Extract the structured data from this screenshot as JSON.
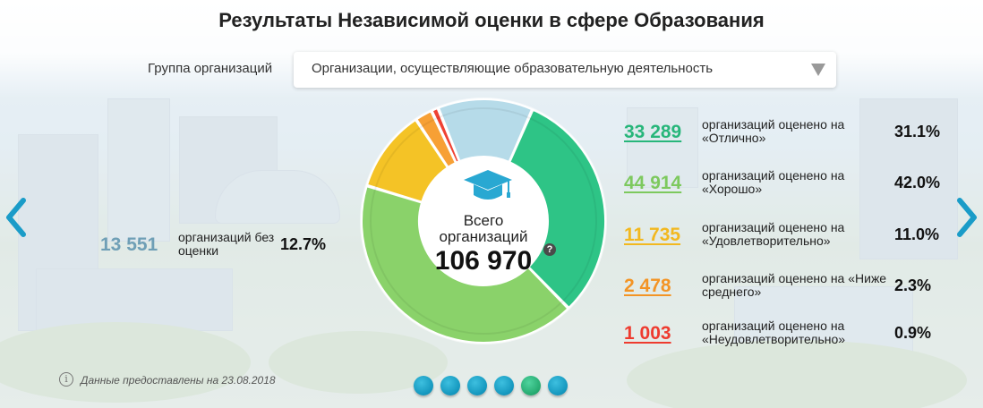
{
  "title": "Результаты Независимой оценки в сфере Образования",
  "filter": {
    "label": "Группа организаций",
    "selected": "Организации, осуществляющие образовательную деятельность"
  },
  "center": {
    "label": "Всего организаций",
    "value": "106 970",
    "help": "?"
  },
  "unrated": {
    "count": "13 551",
    "desc": "организаций без оценки",
    "pct": "12.7%",
    "color": "#6f9fb6"
  },
  "rows": [
    {
      "count": "33 289",
      "desc": "организаций оценено на «Отлично»",
      "pct": "31.1%",
      "color": "#27b67a"
    },
    {
      "count": "44 914",
      "desc": "организаций оценено на «Хорошо»",
      "pct": "42.0%",
      "color": "#7dc95e"
    },
    {
      "count": "11 735",
      "desc": "организаций оценено на «Удовлетворительно»",
      "pct": "11.0%",
      "color": "#f2b81f"
    },
    {
      "count": "2 478",
      "desc": "организаций оценено на «Ниже среднего»",
      "pct": "2.3%",
      "color": "#f39425"
    },
    {
      "count": "1 003",
      "desc": "организаций оценено на «Неудовлетворительно»",
      "pct": "0.9%",
      "color": "#ee3b2f"
    }
  ],
  "footnote": "Данные предоставлены на 23.08.2018",
  "pagination": {
    "count": 6,
    "active": 4
  },
  "chart_data": {
    "type": "pie",
    "categories": [
      "Отлично",
      "Хорошо",
      "Удовлетворительно",
      "Ниже среднего",
      "Неудовлетворительно",
      "без оценки"
    ],
    "values": [
      33289,
      44914,
      11735,
      2478,
      1003,
      13551
    ],
    "percentages": [
      31.1,
      42.0,
      11.0,
      2.3,
      0.9,
      12.7
    ],
    "colors": [
      "#2ec486",
      "#8ad26a",
      "#f4c326",
      "#f7a035",
      "#ef4234",
      "#b6dbe9"
    ],
    "total": 106970
  }
}
